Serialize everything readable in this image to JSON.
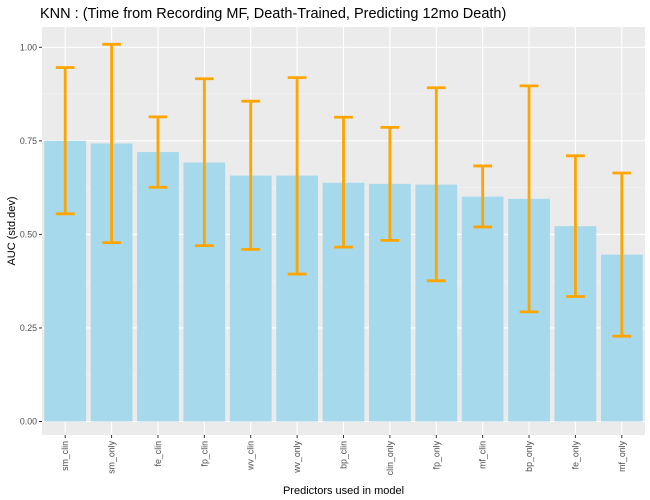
{
  "chart_data": {
    "type": "bar",
    "title": "KNN : (Time from Recording MF, Death-Trained, Predicting 12mo Death)",
    "xlabel": "Predictors used in model",
    "ylabel": "AUC (std.dev)",
    "ylim": [
      0.0,
      1.05
    ],
    "y_ticks": [
      "0.00",
      "0.25",
      "0.50",
      "0.75",
      "1.00"
    ],
    "grid": true,
    "legend": "none",
    "categories": [
      "sm_clin",
      "sm_only",
      "fe_clin",
      "fp_clin",
      "wv_clin",
      "wv_only",
      "bp_clin",
      "clin_only",
      "fp_only",
      "mf_clin",
      "bp_only",
      "fe_only",
      "mf_only"
    ],
    "values": [
      0.75,
      0.743,
      0.72,
      0.692,
      0.657,
      0.657,
      0.638,
      0.635,
      0.633,
      0.601,
      0.595,
      0.522,
      0.446
    ],
    "error_low": [
      0.555,
      0.478,
      0.626,
      0.47,
      0.46,
      0.394,
      0.466,
      0.484,
      0.376,
      0.52,
      0.293,
      0.334,
      0.228
    ],
    "error_high": [
      0.946,
      1.008,
      0.814,
      0.916,
      0.856,
      0.919,
      0.813,
      0.786,
      0.892,
      0.683,
      0.897,
      0.71,
      0.664
    ],
    "colors": {
      "bar": "#a6d9eb",
      "error_bar": "#ffa500",
      "panel": "#ebebeb",
      "grid_major": "#ffffff",
      "grid_minor": "#f5f5f5"
    }
  }
}
